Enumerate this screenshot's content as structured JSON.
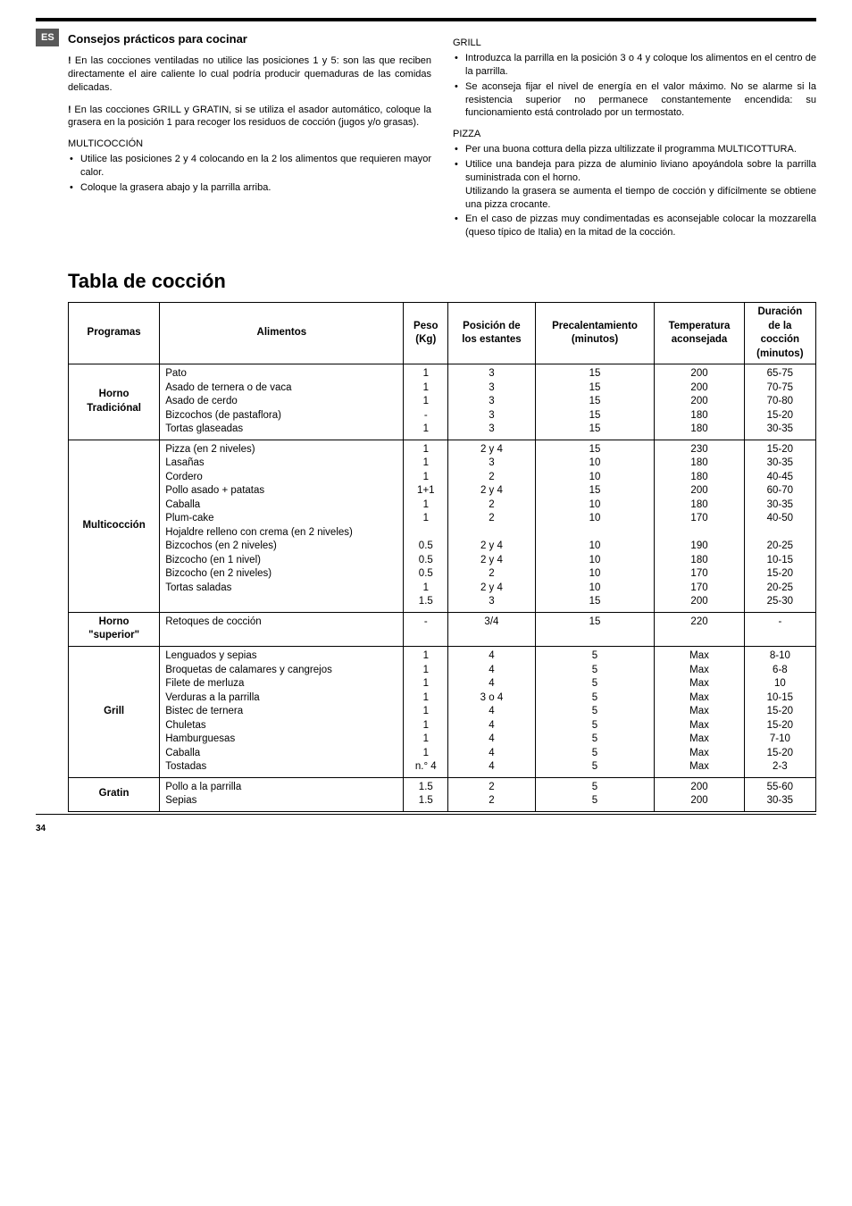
{
  "badge": "ES",
  "left": {
    "title": "Consejos prácticos para cocinar",
    "p1_mark": "!",
    "p1": " En las cocciones ventiladas no utilice las posiciones 1 y 5: son las que reciben directamente el aire caliente lo cual podría producir quemaduras de las comidas delicadas.",
    "p2_mark": "!",
    "p2": " En las cocciones GRILL y GRATIN, si se utiliza el asador automático, coloque la grasera en la posición 1 para recoger los residuos de cocción (jugos y/o grasas).",
    "sub1": "MULTICOCCIÓN",
    "li1": "Utilice las posiciones 2 y 4 colocando en la 2 los alimentos que requieren mayor calor.",
    "li2": "Coloque la grasera abajo y la parrilla arriba."
  },
  "right": {
    "sub1": "GRILL",
    "li1": "Introduzca la parrilla en la posición 3 o 4 y coloque los alimentos en el centro de la parrilla.",
    "li2": "Se aconseja fijar el nivel de energía en el valor máximo. No se alarme si la resistencia superior no permanece constantemente encendida: su funcionamiento está controlado por un termostato.",
    "sub2": "PIZZA",
    "li3": "Per una buona cottura della pizza ultilizzate il programma MULTICOTTURA.",
    "li4": "Utilice una bandeja para pizza de aluminio liviano apoyándola sobre la parrilla suministrada con el horno.\nUtilizando la grasera se aumenta el tiempo de cocción y difícilmente se obtiene una pizza crocante.",
    "li5": "En el caso de pizzas muy condimentadas es aconsejable colocar la mozzarella (queso típico de Italia) en la mitad de la cocción."
  },
  "tabla_title": "Tabla de cocción",
  "headers": {
    "programas": "Programas",
    "alimentos": "Alimentos",
    "peso": "Peso\n(Kg)",
    "pos": "Posición de\nlos estantes",
    "pre": "Precalentamiento\n(minutos)",
    "temp": "Temperatura\naconsejada",
    "dur": "Duración\nde la\ncocción\n(minutos)"
  },
  "rows": [
    {
      "prog": "Horno\nTradiciónal",
      "alim": "Pato\nAsado de ternera o de vaca\nAsado de cerdo\nBizcochos (de pastaflora)\nTortas glaseadas",
      "peso": "1\n1\n1\n-\n1",
      "pos": "3\n3\n3\n3\n3",
      "pre": "15\n15\n15\n15\n15",
      "temp": "200\n200\n200\n180\n180",
      "dur": "65-75\n70-75\n70-80\n15-20\n30-35"
    },
    {
      "prog": "Multicocción",
      "alim": "Pizza (en 2 niveles)\nLasañas\nCordero\nPollo asado + patatas\nCaballa\nPlum-cake\nHojaldre relleno con crema (en 2 niveles)\nBizcochos (en 2 niveles)\nBizcocho (en 1 nivel)\nBizcocho (en 2 niveles)\nTortas saladas",
      "peso": "1\n1\n1\n1+1\n1\n1\n\n0.5\n0.5\n0.5\n1\n1.5",
      "pos": "2 y 4\n3\n2\n2 y 4\n2\n2\n\n2 y 4\n2 y 4\n2\n2 y 4\n3",
      "pre": "15\n10\n10\n15\n10\n10\n\n10\n10\n10\n10\n15",
      "temp": "230\n180\n180\n200\n180\n170\n\n190\n180\n170\n170\n200",
      "dur": "15-20\n30-35\n40-45\n60-70\n30-35\n40-50\n\n20-25\n10-15\n15-20\n20-25\n25-30"
    },
    {
      "prog": "Horno\n\"superior\"",
      "alim": "Retoques de cocción",
      "peso": "-",
      "pos": "3/4",
      "pre": "15",
      "temp": "220",
      "dur": "-"
    },
    {
      "prog": "Grill",
      "alim": "Lenguados y sepias\nBroquetas de calamares y cangrejos\nFilete de merluza\nVerduras a la parrilla\nBistec de ternera\nChuletas\nHamburguesas\nCaballa\nTostadas",
      "peso": "1\n1\n1\n1\n1\n1\n1\n1\nn.° 4",
      "pos": "4\n4\n4\n3 o 4\n4\n4\n4\n4\n4",
      "pre": "5\n5\n5\n5\n5\n5\n5\n5\n5",
      "temp": "Max\nMax\nMax\nMax\nMax\nMax\nMax\nMax\nMax",
      "dur": "8-10\n6-8\n10\n10-15\n15-20\n15-20\n7-10\n15-20\n2-3"
    },
    {
      "prog": "Gratin",
      "alim": "Pollo a la parrilla\nSepias",
      "peso": "1.5\n1.5",
      "pos": "2\n2",
      "pre": "5\n5",
      "temp": "200\n200",
      "dur": "55-60\n30-35"
    }
  ],
  "pagenum": "34"
}
